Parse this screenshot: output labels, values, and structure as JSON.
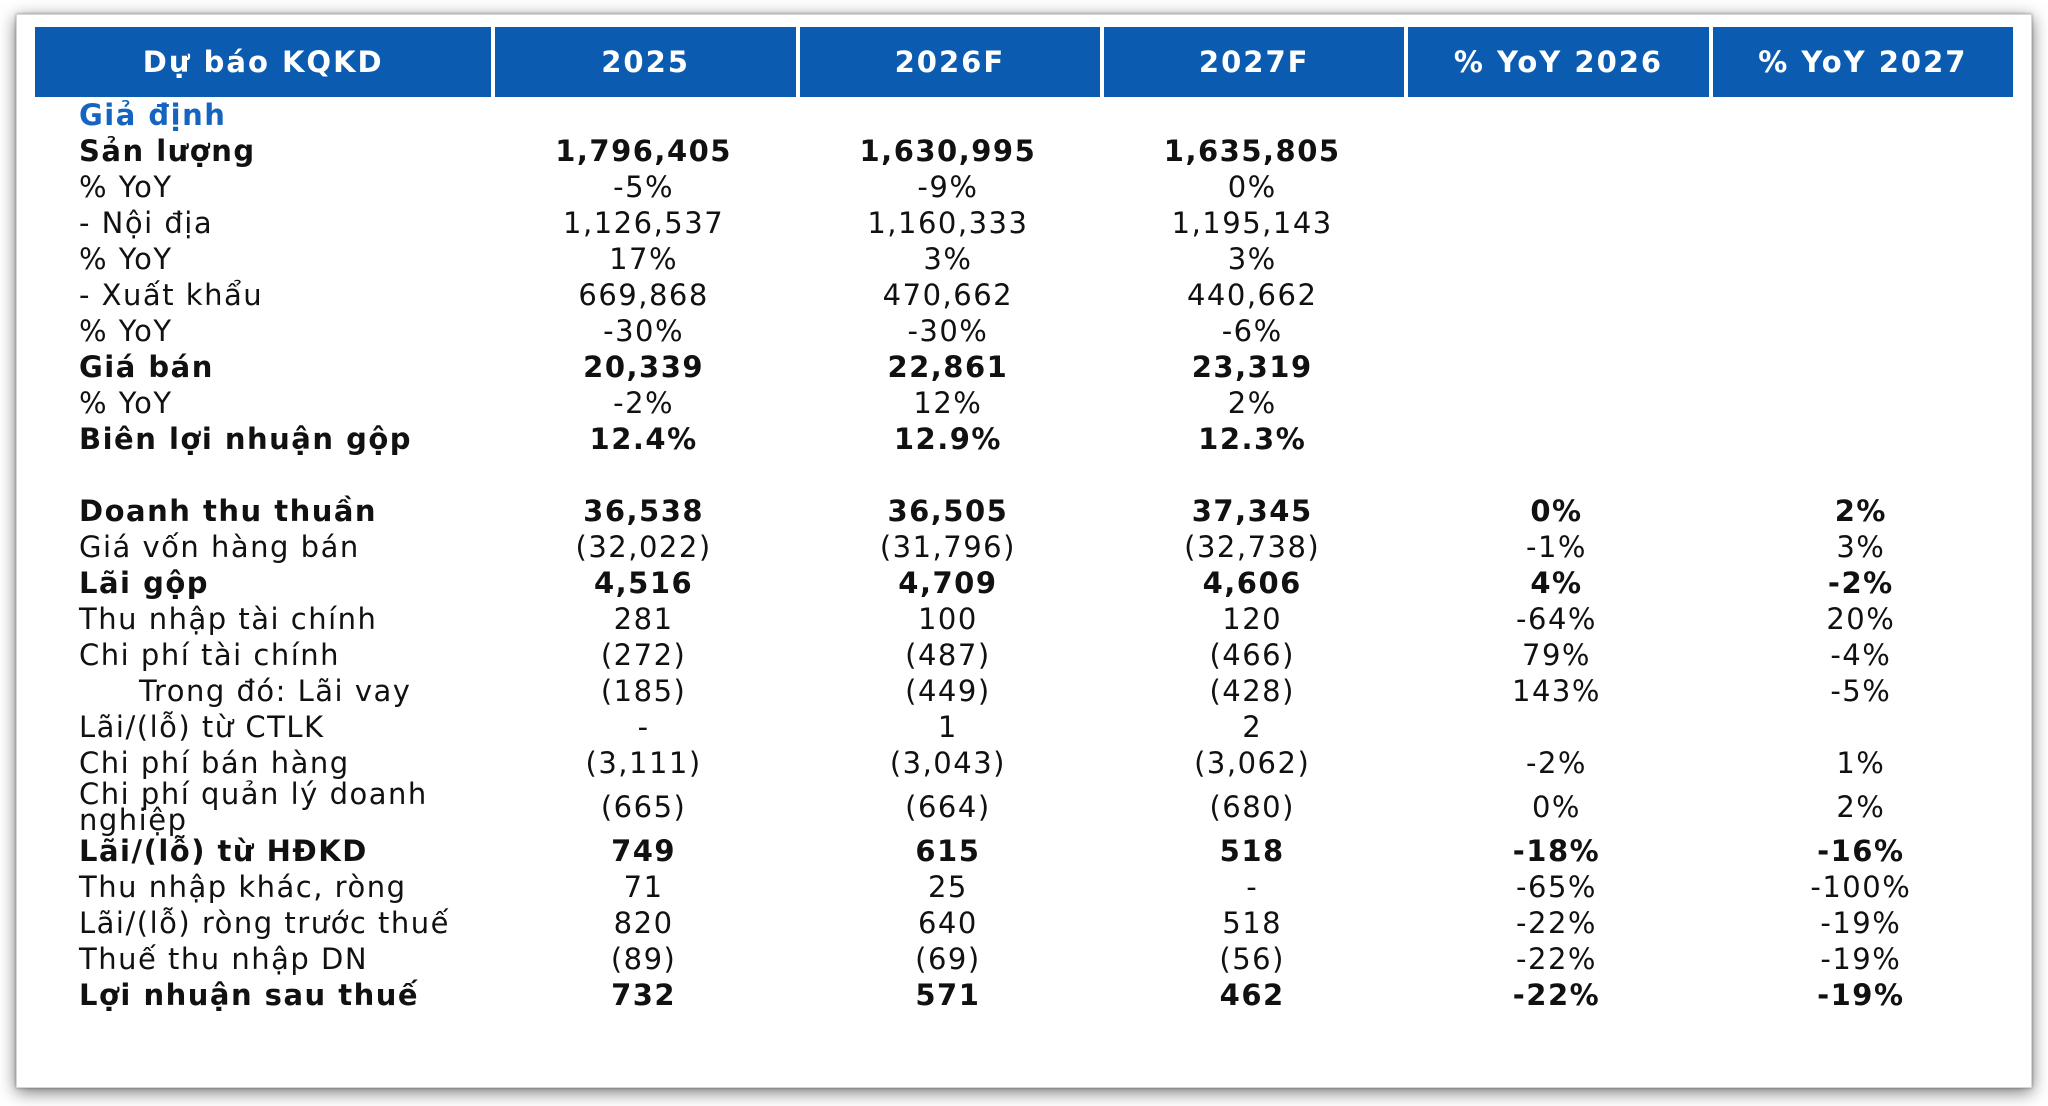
{
  "table": {
    "columns": [
      "Dự báo KQKD",
      "2025",
      "2026F",
      "2027F",
      "% YoY 2026",
      "% YoY 2027"
    ],
    "section_label": "Giả định",
    "assumption_rows": [
      {
        "label": "Sản lượng",
        "bold": true,
        "values": [
          "1,796,405",
          "1,630,995",
          "1,635,805",
          "",
          ""
        ]
      },
      {
        "label": "% YoY",
        "bold": false,
        "values": [
          "-5%",
          "-9%",
          "0%",
          "",
          ""
        ]
      },
      {
        "label": "- Nội địa",
        "bold": false,
        "values": [
          "1,126,537",
          "1,160,333",
          "1,195,143",
          "",
          ""
        ]
      },
      {
        "label": "% YoY",
        "bold": false,
        "values": [
          "17%",
          "3%",
          "3%",
          "",
          ""
        ]
      },
      {
        "label": "- Xuất khẩu",
        "bold": false,
        "values": [
          "669,868",
          "470,662",
          "440,662",
          "",
          ""
        ]
      },
      {
        "label": "% YoY",
        "bold": false,
        "values": [
          "-30%",
          "-30%",
          "-6%",
          "",
          ""
        ]
      },
      {
        "label": "Giá bán",
        "bold": true,
        "values": [
          "20,339",
          "22,861",
          "23,319",
          "",
          ""
        ]
      },
      {
        "label": "% YoY",
        "bold": false,
        "values": [
          "-2%",
          "12%",
          "2%",
          "",
          ""
        ]
      },
      {
        "label": "Biên lợi nhuận gộp",
        "bold": true,
        "values": [
          "12.4%",
          "12.9%",
          "12.3%",
          "",
          ""
        ]
      }
    ],
    "income_rows": [
      {
        "label": "Doanh thu thuần",
        "bold": true,
        "values": [
          "36,538",
          "36,505",
          "37,345",
          "0%",
          "2%"
        ]
      },
      {
        "label": "Giá vốn hàng bán",
        "bold": false,
        "values": [
          "(32,022)",
          "(31,796)",
          "(32,738)",
          "-1%",
          "3%"
        ]
      },
      {
        "label": "Lãi gộp",
        "bold": true,
        "values": [
          "4,516",
          "4,709",
          "4,606",
          "4%",
          "-2%"
        ]
      },
      {
        "label": "Thu nhập tài chính",
        "bold": false,
        "values": [
          "281",
          "100",
          "120",
          "-64%",
          "20%"
        ]
      },
      {
        "label": "Chi phí tài chính",
        "bold": false,
        "values": [
          "(272)",
          "(487)",
          "(466)",
          "79%",
          "-4%"
        ]
      },
      {
        "label": "Trong đó: Lãi vay",
        "bold": false,
        "indent": true,
        "values": [
          "(185)",
          "(449)",
          "(428)",
          "143%",
          "-5%"
        ]
      },
      {
        "label": "Lãi/(lỗ) từ CTLK",
        "bold": false,
        "values": [
          "-",
          "1",
          "2",
          "",
          ""
        ]
      },
      {
        "label": "Chi phí bán hàng",
        "bold": false,
        "values": [
          "(3,111)",
          "(3,043)",
          "(3,062)",
          "-2%",
          "1%"
        ]
      },
      {
        "label": "Chi phí quản lý doanh  nghiệp",
        "bold": false,
        "tall": true,
        "values": [
          "(665)",
          "(664)",
          "(680)",
          "0%",
          "2%"
        ]
      },
      {
        "label": "Lãi/(lỗ) từ HĐKD",
        "bold": true,
        "values": [
          "749",
          "615",
          "518",
          "-18%",
          "-16%"
        ]
      },
      {
        "label": "Thu nhập khác, ròng",
        "bold": false,
        "values": [
          "71",
          "25",
          "-",
          "-65%",
          "-100%"
        ]
      },
      {
        "label": "Lãi/(lỗ) ròng trước thuế",
        "bold": false,
        "tall": true,
        "values": [
          "820",
          "640",
          "518",
          "-22%",
          "-19%"
        ]
      },
      {
        "label": "Thuế thu nhập DN",
        "bold": false,
        "values": [
          "(89)",
          "(69)",
          "(56)",
          "-22%",
          "-19%"
        ]
      },
      {
        "label": "Lợi nhuận sau thuế",
        "bold": true,
        "values": [
          "732",
          "571",
          "462",
          "-22%",
          "-19%"
        ]
      }
    ]
  },
  "colors": {
    "header_bg": "#0b5cb0",
    "header_text": "#ffffff",
    "section_label": "#1565c0",
    "body_text": "#111111"
  }
}
